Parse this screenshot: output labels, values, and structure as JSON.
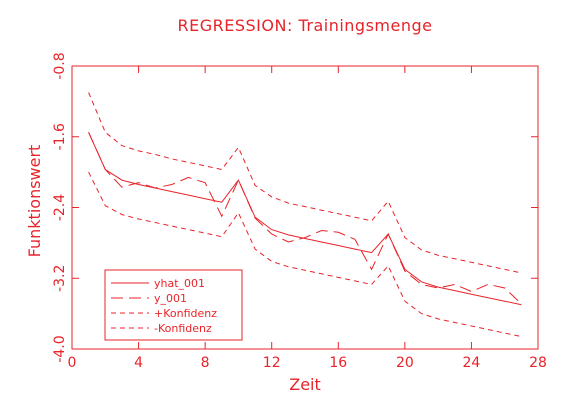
{
  "chart_data": {
    "type": "line",
    "title": "REGRESSION: Trainingsmenge",
    "xlabel": "Zeit",
    "ylabel": "Funktionswert",
    "xlim": [
      0,
      28
    ],
    "ylim": [
      -4.0,
      -0.8
    ],
    "x_ticks": [
      0,
      4,
      8,
      12,
      16,
      20,
      24,
      28
    ],
    "x_tick_labels": [
      "0",
      "4",
      "8",
      "12",
      "16",
      "20",
      "24",
      "28"
    ],
    "y_ticks": [
      -4.0,
      -3.2,
      -2.4,
      -1.6,
      -0.8
    ],
    "y_tick_labels": [
      "-4.0",
      "-3.2",
      "-2.4",
      "-1.6",
      "-0.8"
    ],
    "grid": false,
    "legend_position": "bottom-left",
    "color": "#e8232a",
    "series": [
      {
        "name": "yhat_001",
        "style": "solid",
        "x": [
          1,
          2,
          3,
          4,
          5,
          6,
          7,
          8,
          9,
          10,
          11,
          12,
          13,
          14,
          15,
          16,
          17,
          18,
          19,
          20,
          21,
          22,
          23,
          24,
          25,
          26,
          27
        ],
        "y": [
          -1.55,
          -1.97,
          -2.09,
          -2.14,
          -2.18,
          -2.22,
          -2.26,
          -2.3,
          -2.34,
          -2.09,
          -2.51,
          -2.65,
          -2.71,
          -2.75,
          -2.79,
          -2.83,
          -2.87,
          -2.91,
          -2.7,
          -3.1,
          -3.24,
          -3.3,
          -3.34,
          -3.38,
          -3.42,
          -3.46,
          -3.5
        ]
      },
      {
        "name": "y_001",
        "style": "longdash",
        "x": [
          1,
          2,
          3,
          4,
          5,
          6,
          7,
          8,
          9,
          10,
          11,
          12,
          13,
          14,
          15,
          16,
          17,
          18,
          19,
          20,
          21,
          22,
          23,
          24,
          25,
          26,
          27
        ],
        "y": [
          -1.55,
          -1.97,
          -2.17,
          -2.12,
          -2.18,
          -2.14,
          -2.06,
          -2.12,
          -2.5,
          -2.09,
          -2.52,
          -2.7,
          -2.79,
          -2.74,
          -2.66,
          -2.68,
          -2.76,
          -3.1,
          -2.7,
          -3.12,
          -3.27,
          -3.31,
          -3.27,
          -3.35,
          -3.27,
          -3.31,
          -3.49
        ]
      },
      {
        "name": "+Konfidenz",
        "style": "dash",
        "x": [
          1,
          2,
          3,
          4,
          5,
          6,
          7,
          8,
          9,
          10,
          11,
          12,
          13,
          14,
          15,
          16,
          17,
          18,
          19,
          20,
          21,
          22,
          23,
          24,
          25,
          26,
          27
        ],
        "y": [
          -1.1,
          -1.55,
          -1.7,
          -1.76,
          -1.8,
          -1.85,
          -1.89,
          -1.93,
          -1.97,
          -1.72,
          -2.15,
          -2.28,
          -2.35,
          -2.39,
          -2.43,
          -2.47,
          -2.51,
          -2.55,
          -2.33,
          -2.74,
          -2.88,
          -2.94,
          -2.98,
          -3.02,
          -3.06,
          -3.1,
          -3.14
        ]
      },
      {
        "name": "-Konfidenz",
        "style": "dash",
        "x": [
          1,
          2,
          3,
          4,
          5,
          6,
          7,
          8,
          9,
          10,
          11,
          12,
          13,
          14,
          15,
          16,
          17,
          18,
          19,
          20,
          21,
          22,
          23,
          24,
          25,
          26,
          27
        ],
        "y": [
          -2.0,
          -2.38,
          -2.48,
          -2.53,
          -2.57,
          -2.61,
          -2.65,
          -2.69,
          -2.73,
          -2.46,
          -2.87,
          -3.01,
          -3.07,
          -3.11,
          -3.15,
          -3.19,
          -3.23,
          -3.27,
          -3.06,
          -3.46,
          -3.6,
          -3.66,
          -3.7,
          -3.74,
          -3.78,
          -3.82,
          -3.86
        ]
      }
    ]
  }
}
